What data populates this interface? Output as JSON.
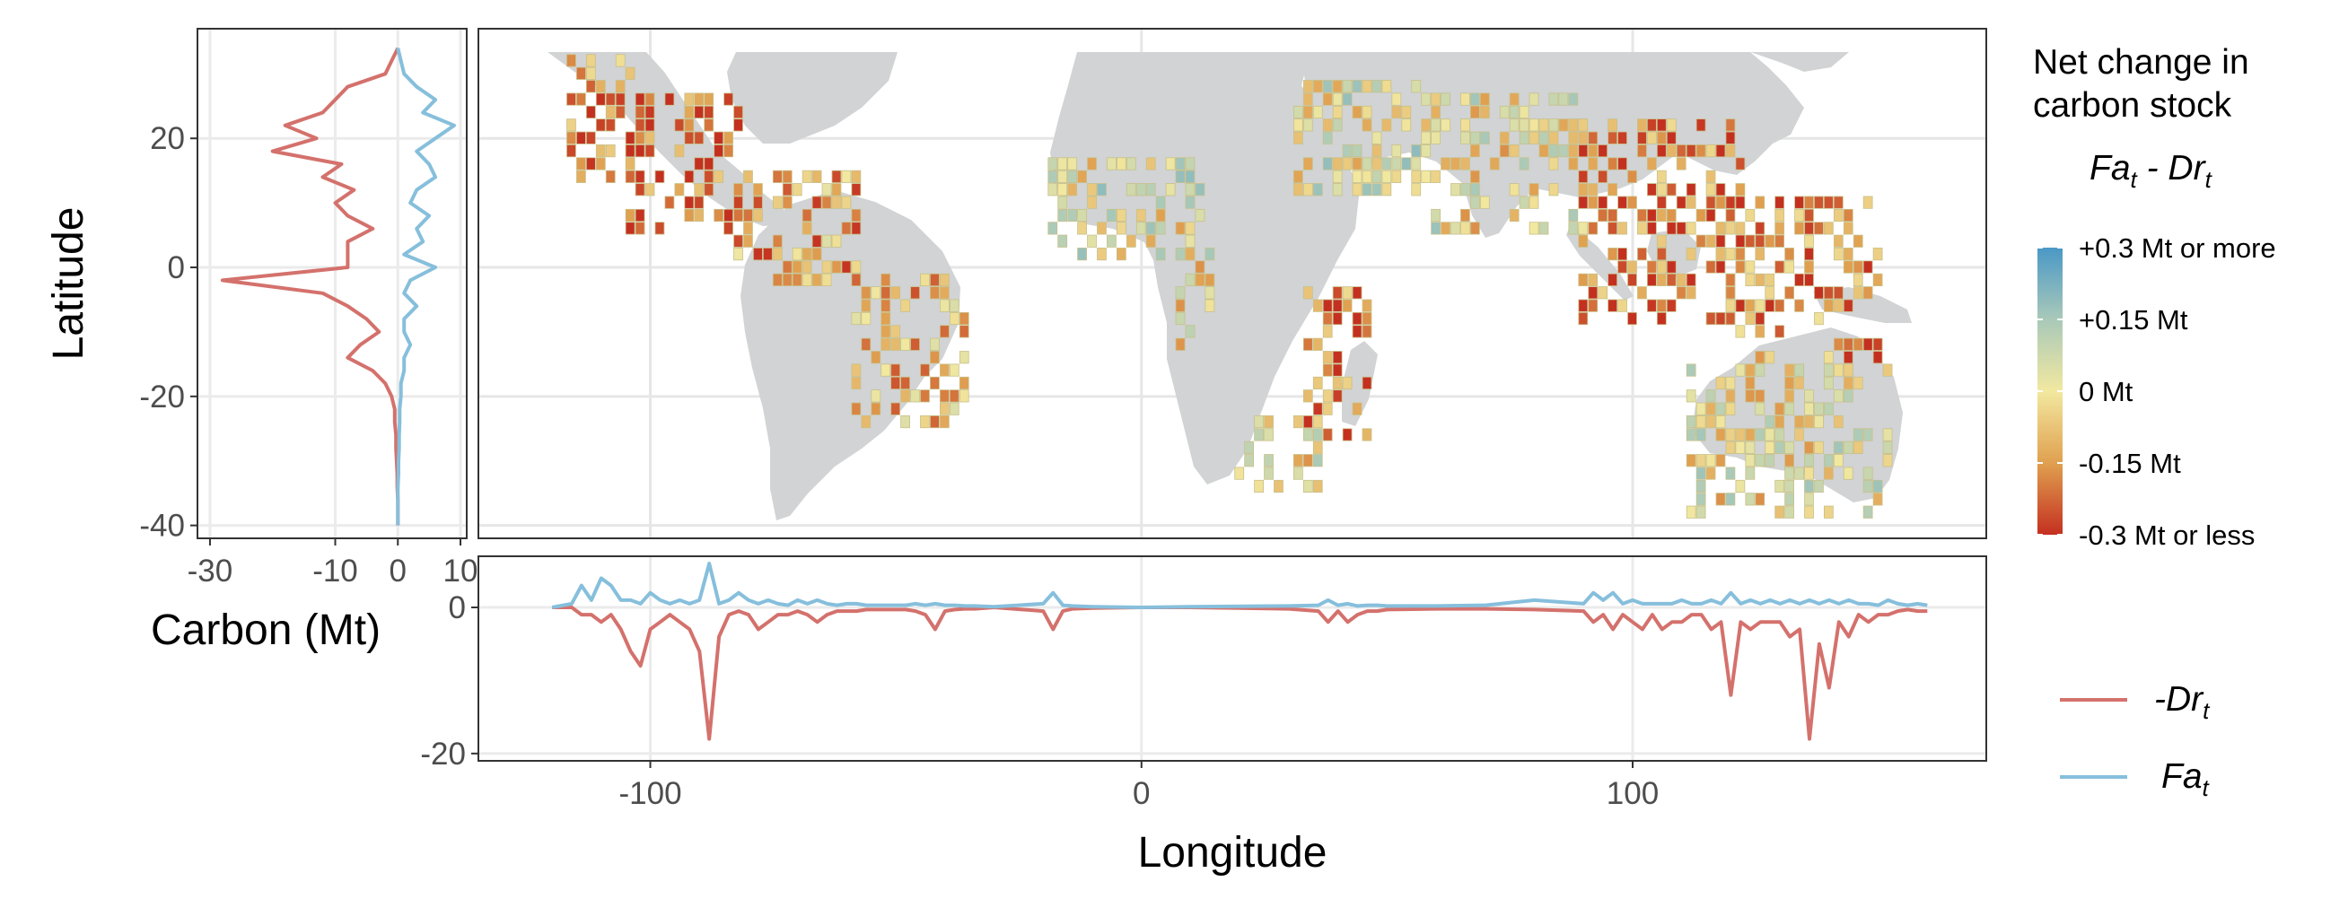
{
  "chart_data": [
    {
      "type": "line",
      "panel": "latitude-profile",
      "orientation": "vertical",
      "xlabel": "Carbon (Mt)",
      "ylabel": "Latitude",
      "xlim": [
        -32,
        11
      ],
      "ylim": [
        -42,
        37
      ],
      "x_ticks": [
        -30,
        -10,
        0,
        10
      ],
      "y_ticks": [
        -40,
        -20,
        0,
        20
      ],
      "grid": true,
      "series": [
        {
          "name": "-Drt",
          "color": "#d4716c",
          "lat": [
            34,
            32,
            30,
            28,
            26,
            24,
            22,
            20,
            18,
            16,
            14,
            12,
            10,
            8,
            6,
            4,
            2,
            0,
            -2,
            -4,
            -6,
            -8,
            -10,
            -12,
            -14,
            -16,
            -18,
            -20,
            -22,
            -24,
            -26,
            -28,
            -30,
            -32,
            -34,
            -36,
            -38,
            -40
          ],
          "values": [
            0,
            -1,
            -2,
            -8,
            -10,
            -12,
            -18,
            -13,
            -20,
            -9,
            -12,
            -7,
            -10,
            -8,
            -4,
            -8,
            -8,
            -8,
            -28,
            -12,
            -8,
            -5,
            -3,
            -6,
            -8,
            -4,
            -2,
            -1,
            -0.5,
            -0.5,
            -0.3,
            -0.3,
            -0.2,
            -0.1,
            -0.1,
            0,
            0,
            0
          ]
        },
        {
          "name": "Fat",
          "color": "#86bfdc",
          "lat": [
            34,
            32,
            30,
            28,
            26,
            24,
            22,
            20,
            18,
            16,
            14,
            12,
            10,
            8,
            6,
            4,
            2,
            0,
            -2,
            -4,
            -6,
            -8,
            -10,
            -12,
            -14,
            -16,
            -18,
            -20,
            -22,
            -24,
            -26,
            -28,
            -30,
            -32,
            -34,
            -36,
            -38,
            -40
          ],
          "values": [
            0,
            0.5,
            1,
            3,
            6,
            4,
            9,
            6,
            3,
            5,
            6,
            3,
            2,
            5,
            3,
            4,
            1,
            6,
            2,
            1,
            3,
            1,
            1,
            2,
            1,
            1,
            0.5,
            0.5,
            0.3,
            0.3,
            0.2,
            0.2,
            0.1,
            0.1,
            0,
            0,
            0,
            0
          ]
        }
      ]
    },
    {
      "type": "heatmap",
      "panel": "map",
      "xlim": [
        -135,
        172
      ],
      "ylim": [
        -42,
        37
      ],
      "legend_title": [
        "Net change in",
        "carbon stock"
      ],
      "legend_expression": "Fat - Drt",
      "colorbar_labels": [
        "+0.3 Mt or more",
        "+0.15 Mt",
        "0 Mt",
        "-0.15 Mt",
        "-0.3 Mt or less"
      ],
      "colorbar_values": [
        0.3,
        0.15,
        0,
        -0.15,
        -0.3
      ],
      "colors": {
        "high": "#4a98c6",
        "mid": "#f2e8a0",
        "low": "#c43020",
        "land": "#d1d3d4"
      },
      "grid": true
    },
    {
      "type": "line",
      "panel": "longitude-profile",
      "xlabel": "Longitude",
      "ylabel": "Carbon (Mt)",
      "xlim": [
        -135,
        172
      ],
      "ylim": [
        -21,
        7
      ],
      "x_ticks": [
        -100,
        0,
        100
      ],
      "y_ticks": [
        -20,
        0
      ],
      "grid": true,
      "series": [
        {
          "name": "-Drt",
          "color": "#d4716c",
          "x": [
            -120,
            -116,
            -114,
            -112,
            -110,
            -108,
            -106,
            -104,
            -102,
            -100,
            -98,
            -96,
            -94,
            -92,
            -90,
            -88,
            -86,
            -84,
            -82,
            -80,
            -78,
            -76,
            -74,
            -72,
            -70,
            -68,
            -66,
            -64,
            -62,
            -60,
            -58,
            -56,
            -54,
            -52,
            -50,
            -48,
            -46,
            -44,
            -42,
            -40,
            -38,
            -36,
            -34,
            -30,
            -20,
            -18,
            -16,
            -14,
            -10,
            0,
            10,
            30,
            36,
            38,
            40,
            42,
            44,
            46,
            48,
            50,
            60,
            70,
            80,
            90,
            92,
            94,
            96,
            98,
            100,
            102,
            104,
            106,
            108,
            110,
            112,
            114,
            116,
            118,
            120,
            122,
            124,
            126,
            128,
            130,
            132,
            134,
            136,
            138,
            140,
            142,
            144,
            146,
            148,
            150,
            152,
            154,
            156,
            158,
            160
          ],
          "values": [
            0,
            0,
            -1,
            -1,
            -2,
            -1,
            -3,
            -6,
            -8,
            -3,
            -2,
            -1,
            -2,
            -3,
            -6,
            -18,
            -4,
            -1,
            -0.5,
            -1,
            -3,
            -2,
            -1,
            -1,
            -0.5,
            -1,
            -2,
            -1,
            -0.5,
            -0.5,
            -0.5,
            -0.3,
            -0.3,
            -0.3,
            -0.3,
            -0.3,
            -0.5,
            -1,
            -3,
            -0.5,
            -0.3,
            -0.2,
            -0.2,
            0,
            -0.5,
            -3,
            -0.5,
            -0.2,
            -0.1,
            0,
            0,
            -0.2,
            -0.5,
            -2,
            -0.5,
            -2,
            -1,
            -0.5,
            -0.5,
            -0.3,
            -0.2,
            -0.2,
            -0.3,
            -0.5,
            -2,
            -1,
            -3,
            -1,
            -2,
            -3,
            -1,
            -3,
            -2,
            -2,
            -1,
            -1,
            -3,
            -2,
            -12,
            -2,
            -3,
            -2,
            -2,
            -2,
            -4,
            -3,
            -18,
            -5,
            -11,
            -2,
            -4,
            -1,
            -2,
            -1,
            -1,
            -0.5,
            -0.3,
            -0.5,
            -0.5
          ]
        },
        {
          "name": "Fat",
          "color": "#86bfdc",
          "x": [
            -120,
            -116,
            -114,
            -112,
            -110,
            -108,
            -106,
            -104,
            -102,
            -100,
            -98,
            -96,
            -94,
            -92,
            -90,
            -88,
            -86,
            -84,
            -82,
            -80,
            -78,
            -76,
            -74,
            -72,
            -70,
            -68,
            -66,
            -64,
            -62,
            -60,
            -58,
            -56,
            -54,
            -52,
            -50,
            -48,
            -46,
            -44,
            -42,
            -40,
            -38,
            -36,
            -34,
            -30,
            -20,
            -18,
            -16,
            -14,
            -10,
            0,
            10,
            30,
            36,
            38,
            40,
            42,
            44,
            46,
            48,
            50,
            60,
            70,
            80,
            90,
            92,
            94,
            96,
            98,
            100,
            102,
            104,
            106,
            108,
            110,
            112,
            114,
            116,
            118,
            120,
            122,
            124,
            126,
            128,
            130,
            132,
            134,
            136,
            138,
            140,
            142,
            144,
            146,
            148,
            150,
            152,
            154,
            156,
            158,
            160
          ],
          "values": [
            0,
            0.5,
            3,
            1,
            4,
            3,
            1,
            1,
            0.5,
            2,
            1,
            0.5,
            1,
            0.5,
            1,
            6,
            0.5,
            1,
            2,
            1,
            0.5,
            1,
            0.5,
            0.3,
            1,
            0.5,
            1,
            0.5,
            0.3,
            0.5,
            0.5,
            0.3,
            0.3,
            0.3,
            0.3,
            0.3,
            0.5,
            0.3,
            0.5,
            0.3,
            0.3,
            0.2,
            0.2,
            0.1,
            0.5,
            2,
            0.3,
            0.2,
            0.1,
            0,
            0.1,
            0.2,
            0.3,
            1,
            0.3,
            0.5,
            0.2,
            0.3,
            0.3,
            0.2,
            0.2,
            0.3,
            1,
            0.5,
            2,
            1,
            2,
            0.5,
            1,
            0.5,
            0.5,
            0.5,
            0.5,
            1,
            0.5,
            0.5,
            1,
            0.5,
            2,
            0.5,
            1,
            0.5,
            1,
            0.5,
            1,
            0.5,
            1,
            0.5,
            1,
            0.5,
            1,
            0.5,
            0.5,
            0.3,
            1,
            0.5,
            0.3,
            0.5,
            0.3
          ]
        }
      ]
    }
  ],
  "legend": {
    "items": [
      {
        "base": "-Dr",
        "sub": "t",
        "color": "#d4716c"
      },
      {
        "base": "Fa",
        "sub": "t",
        "color": "#86bfdc"
      }
    ]
  },
  "colorbar_title": {
    "line1": "Net change in",
    "line2": "carbon stock"
  }
}
